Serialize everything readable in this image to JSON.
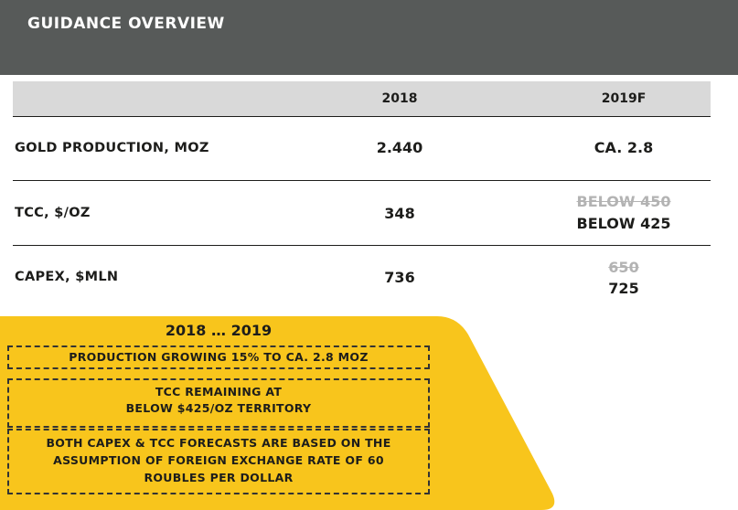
{
  "header": {
    "title": "GUIDANCE OVERVIEW"
  },
  "table": {
    "columns": [
      "2018",
      "2019F"
    ],
    "rows": [
      {
        "label": "GOLD PRODUCTION, MOZ",
        "v2018": "2.440",
        "v2019_old": "",
        "v2019": "CA. 2.8"
      },
      {
        "label": "TCC, $/OZ",
        "v2018": "348",
        "v2019_old": "BELOW 450",
        "v2019": "BELOW 425"
      },
      {
        "label": "CAPEX, $MLN",
        "v2018": "736",
        "v2019_old": "650",
        "v2019": "725"
      }
    ]
  },
  "summary": {
    "title": "2018 … 2019",
    "box1": "PRODUCTION GROWING 15% TO CA. 2.8 MOZ",
    "box2_line1": "TCC REMAINING AT",
    "box2_line2": "BELOW $425/OZ TERRITORY",
    "box3_line1": "BOTH CAPEX & TCC FORECASTS ARE BASED ON THE",
    "box3_line2": "ASSUMPTION OF FOREIGN EXCHANGE RATE OF 60",
    "box3_line3": "ROUBLES PER DOLLAR"
  },
  "colors": {
    "header": "#575a59",
    "accent": "#f8c51c",
    "column_header": "#d9d9d9"
  }
}
